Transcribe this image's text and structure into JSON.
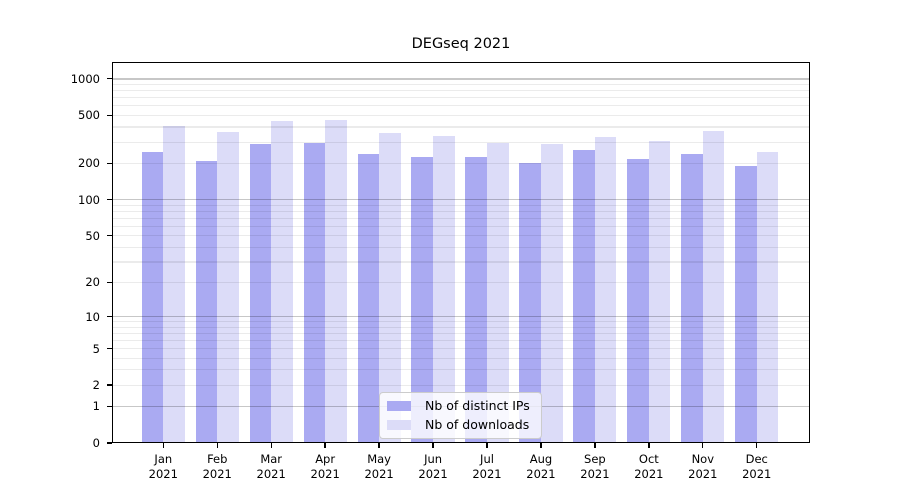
{
  "figure": {
    "title": "DEGseq 2021"
  },
  "chart_data": {
    "type": "bar",
    "title": "DEGseq 2021",
    "xlabel": "",
    "ylabel": "",
    "yscale": "log1p",
    "ylim": [
      0,
      1375
    ],
    "yticks": [
      0,
      1,
      2,
      5,
      10,
      20,
      50,
      100,
      200,
      500,
      1000
    ],
    "grid": "horizontal only; dark major lines at 1,10,100,1000; faint minor lines at 2-9 per decade",
    "grid_major_at": [
      1,
      10,
      100,
      1000
    ],
    "grid_minor_base": [
      2,
      3,
      4,
      5,
      6,
      7,
      8,
      9
    ],
    "legend_position": "lower center",
    "categories": [
      {
        "month": "Jan",
        "year": "2021"
      },
      {
        "month": "Feb",
        "year": "2021"
      },
      {
        "month": "Mar",
        "year": "2021"
      },
      {
        "month": "Apr",
        "year": "2021"
      },
      {
        "month": "May",
        "year": "2021"
      },
      {
        "month": "Jun",
        "year": "2021"
      },
      {
        "month": "Jul",
        "year": "2021"
      },
      {
        "month": "Aug",
        "year": "2021"
      },
      {
        "month": "Sep",
        "year": "2021"
      },
      {
        "month": "Oct",
        "year": "2021"
      },
      {
        "month": "Nov",
        "year": "2021"
      },
      {
        "month": "Dec",
        "year": "2021"
      }
    ],
    "series": [
      {
        "name": "Nb of distinct IPs",
        "color": "#aaaaf2",
        "values": [
          249,
          209,
          288,
          297,
          238,
          226,
          228,
          203,
          260,
          218,
          238,
          189
        ]
      },
      {
        "name": "Nb of downloads",
        "color": "#dcdcf8",
        "values": [
          408,
          366,
          445,
          453,
          360,
          338,
          294,
          288,
          331,
          305,
          373,
          248
        ]
      }
    ],
    "colors": {
      "axis": "#000000",
      "grid_major": "rgba(0,0,0,0.22)",
      "grid_minor": "rgba(0,0,0,0.08)",
      "background": "#ffffff"
    }
  }
}
